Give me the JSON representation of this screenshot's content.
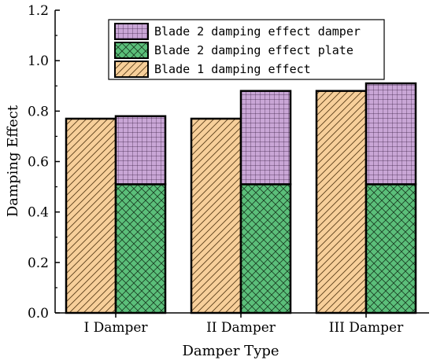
{
  "chart_data": {
    "type": "bar",
    "title": "",
    "xlabel": "Damper Type",
    "ylabel": "Damping Effect",
    "ylim": [
      0,
      1.2
    ],
    "yticks": [
      "0.0",
      "0.2",
      "0.4",
      "0.6",
      "0.8",
      "1.0",
      "1.2"
    ],
    "categories": [
      "I Damper",
      "II Damper",
      "III Damper"
    ],
    "series": [
      {
        "name": "Blade 1 damping effect",
        "values": [
          0.77,
          0.77,
          0.88
        ],
        "color": "#f7cf9a",
        "pattern": "diagonal"
      },
      {
        "name": "Blade 2 damping effect plate",
        "values": [
          0.51,
          0.51,
          0.51
        ],
        "color": "#5bbf7a",
        "pattern": "crosshatch",
        "stack": "blade2"
      },
      {
        "name": "Blade 2 damping effect damper",
        "values": [
          0.27,
          0.37,
          0.4
        ],
        "color": "#c9a6d6",
        "pattern": "grid",
        "stack": "blade2"
      }
    ],
    "legend": {
      "position": "top-center",
      "order": [
        "Blade 2 damping effect damper",
        "Blade 2 damping effect plate",
        "Blade 1 damping effect"
      ]
    },
    "grid": false
  }
}
